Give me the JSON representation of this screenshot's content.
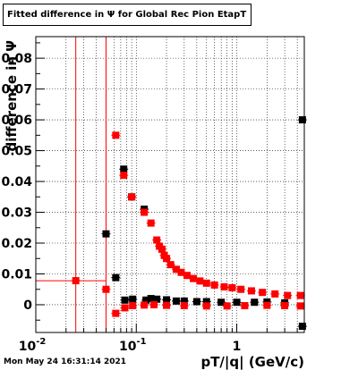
{
  "title": "Fitted difference in  Ψ  for Global Rec Pion EtapT",
  "timestamp": "Mon May 24 16:31:14 2021",
  "colors": {
    "series_red": "#ff0000",
    "series_black": "#000000",
    "grid": "#000000"
  },
  "chart_data": {
    "type": "scatter",
    "title": "Fitted difference in  Ψ  for Global Rec Pion EtapT",
    "xlabel": "pT/|q| (GeV/c)",
    "ylabel": "difference in Ψ",
    "xscale": "log",
    "xlim": [
      0.01,
      4.7
    ],
    "ylim": [
      -0.009,
      0.087
    ],
    "grid": true,
    "x_tick_labels": [
      "10^-2",
      "10^-1",
      "1"
    ],
    "y_tick_labels": [
      "0",
      "0.01",
      "0.02",
      "0.03",
      "0.04",
      "0.05",
      "0.06",
      "0.07",
      "0.08"
    ],
    "y_ticks": [
      0,
      0.01,
      0.02,
      0.03,
      0.04,
      0.05,
      0.06,
      0.07,
      0.08
    ],
    "series": [
      {
        "color": "#000000",
        "marker": "circle-and-square",
        "points": [
          {
            "x": 0.05,
            "y": 0.023
          },
          {
            "x": 0.0625,
            "y": 0.0088
          },
          {
            "x": 0.075,
            "y": 0.044
          },
          {
            "x": 0.077,
            "y": 0.0015
          },
          {
            "x": 0.09,
            "y": 0.035
          },
          {
            "x": 0.092,
            "y": 0.0018
          },
          {
            "x": 0.12,
            "y": 0.031
          },
          {
            "x": 0.125,
            "y": 0.0015
          },
          {
            "x": 0.14,
            "y": 0.002
          },
          {
            "x": 0.16,
            "y": 0.0018
          },
          {
            "x": 0.2,
            "y": 0.0016
          },
          {
            "x": 0.25,
            "y": 0.0012
          },
          {
            "x": 0.3,
            "y": 0.0012
          },
          {
            "x": 0.4,
            "y": 0.001
          },
          {
            "x": 0.5,
            "y": 0.001
          },
          {
            "x": 0.7,
            "y": 0.0008
          },
          {
            "x": 1.0,
            "y": 0.0008
          },
          {
            "x": 1.5,
            "y": 0.0008
          },
          {
            "x": 2.0,
            "y": 0.0009
          },
          {
            "x": 3.0,
            "y": 0.0006
          },
          {
            "x": 4.5,
            "y": 0.06
          },
          {
            "x": 4.5,
            "y": -0.007
          }
        ]
      },
      {
        "color": "#ff0000",
        "marker": "circle-and-square",
        "points": [
          {
            "x": 0.025,
            "y": 0.0078
          },
          {
            "x": 0.05,
            "y": 0.005
          },
          {
            "x": 0.0625,
            "y": 0.055
          },
          {
            "x": 0.0625,
            "y": -0.0028
          },
          {
            "x": 0.075,
            "y": 0.042
          },
          {
            "x": 0.077,
            "y": -0.001
          },
          {
            "x": 0.09,
            "y": 0.035
          },
          {
            "x": 0.092,
            "y": -0.0003
          },
          {
            "x": 0.12,
            "y": 0.03
          },
          {
            "x": 0.14,
            "y": 0.0265
          },
          {
            "x": 0.16,
            "y": 0.021
          },
          {
            "x": 0.17,
            "y": 0.019
          },
          {
            "x": 0.18,
            "y": 0.018
          },
          {
            "x": 0.19,
            "y": 0.016
          },
          {
            "x": 0.2,
            "y": 0.015
          },
          {
            "x": 0.22,
            "y": 0.013
          },
          {
            "x": 0.25,
            "y": 0.0115
          },
          {
            "x": 0.28,
            "y": 0.0105
          },
          {
            "x": 0.32,
            "y": 0.0095
          },
          {
            "x": 0.37,
            "y": 0.0085
          },
          {
            "x": 0.43,
            "y": 0.0077
          },
          {
            "x": 0.5,
            "y": 0.007
          },
          {
            "x": 0.6,
            "y": 0.0064
          },
          {
            "x": 0.75,
            "y": 0.0058
          },
          {
            "x": 0.9,
            "y": 0.0055
          },
          {
            "x": 1.1,
            "y": 0.005
          },
          {
            "x": 1.4,
            "y": 0.0045
          },
          {
            "x": 1.8,
            "y": 0.004
          },
          {
            "x": 2.4,
            "y": 0.0035
          },
          {
            "x": 3.2,
            "y": 0.003
          },
          {
            "x": 4.3,
            "y": 0.003
          },
          {
            "x": 0.12,
            "y": -0.0001
          },
          {
            "x": 0.15,
            "y": 0.0
          },
          {
            "x": 0.2,
            "y": -0.0002
          },
          {
            "x": 0.3,
            "y": -0.0003
          },
          {
            "x": 0.5,
            "y": -0.0004
          },
          {
            "x": 0.8,
            "y": -0.0004
          },
          {
            "x": 1.2,
            "y": -0.0003
          },
          {
            "x": 2.0,
            "y": -0.0002
          },
          {
            "x": 3.0,
            "y": -0.0003
          },
          {
            "x": 4.3,
            "y": -0.0004
          }
        ],
        "vertical_error_lines_x": [
          0.025,
          0.05
        ]
      }
    ]
  }
}
